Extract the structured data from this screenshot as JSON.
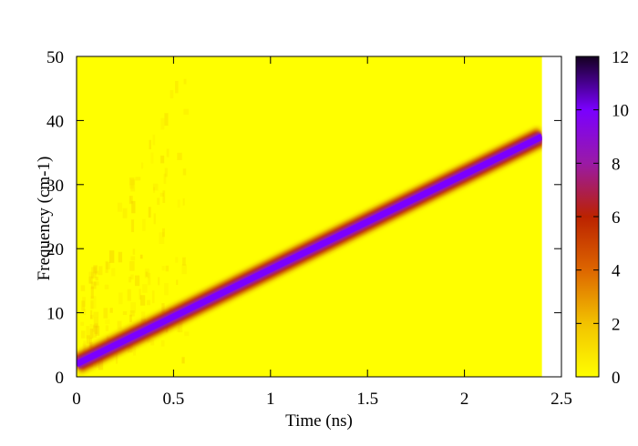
{
  "chart_data": {
    "type": "heatmap",
    "title": "",
    "xlabel": "Time (ns)",
    "ylabel": "Frequency (cm-1)",
    "xlim": [
      0,
      2.5
    ],
    "ylim": [
      0,
      50
    ],
    "x_ticks": [
      "0",
      "0.5",
      "1",
      "1.5",
      "2",
      "2.5"
    ],
    "y_ticks": [
      "0",
      "10",
      "20",
      "30",
      "40",
      "50"
    ],
    "data_extent_x": [
      0,
      2.4
    ],
    "colorbar": {
      "range": [
        0,
        12
      ],
      "ticks": [
        "0",
        "2",
        "4",
        "6",
        "8",
        "10",
        "12"
      ],
      "stops": [
        {
          "value": 0,
          "color": "#ffff00"
        },
        {
          "value": 2,
          "color": "#f2c200"
        },
        {
          "value": 4,
          "color": "#dd6600"
        },
        {
          "value": 6,
          "color": "#bb2200"
        },
        {
          "value": 8,
          "color": "#9a1aa6"
        },
        {
          "value": 10,
          "color": "#7a00ff"
        },
        {
          "value": 12,
          "color": "#140020"
        }
      ]
    },
    "ridge": {
      "description_values": "chirp line: frequency rising linearly with time",
      "start": {
        "time": 0,
        "frequency": 2
      },
      "end": {
        "time": 2.4,
        "frequency": 37.5
      },
      "peak_intensity": 10,
      "halo_intensity": 6
    }
  },
  "colors": {
    "background_field": "#ffff00",
    "frame": "#000000"
  }
}
